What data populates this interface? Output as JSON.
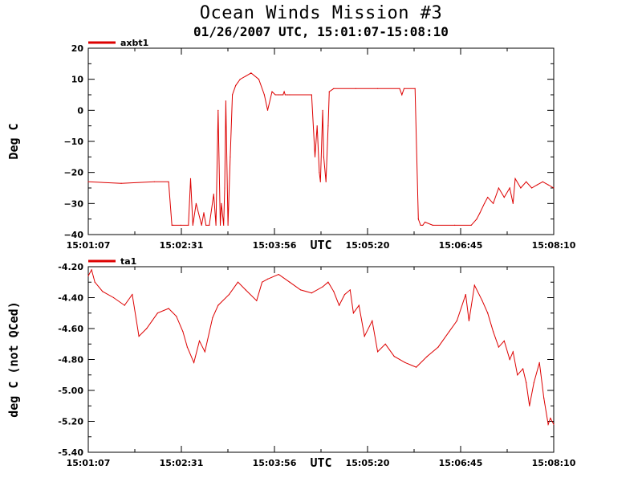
{
  "title": "Ocean Winds Mission #3",
  "subtitle": "01/26/2007  UTC, 15:01:07-15:08:10",
  "colors": {
    "series": "#dd0000",
    "axes": "#000000",
    "background": "#ffffff"
  },
  "chart_data": [
    {
      "type": "line",
      "xlabel": "UTC",
      "ylabel": "Deg C",
      "xlim": [
        "15:01:07",
        "15:08:10"
      ],
      "ylim": [
        -40,
        20
      ],
      "yticks": [
        "20",
        "10",
        "0",
        "−10",
        "−20",
        "−30",
        "−40"
      ],
      "xticks": [
        "15:01:07",
        "15:02:31",
        "15:03:56",
        "15:05:20",
        "15:06:45",
        "15:08:10"
      ],
      "grid": false,
      "legend": "top-left",
      "series": [
        {
          "name": "axbt1",
          "x": [
            "15:01:07",
            "15:01:37",
            "15:02:07",
            "15:02:20",
            "15:02:23",
            "15:02:24",
            "15:02:31",
            "15:02:38",
            "15:02:40",
            "15:02:42",
            "15:02:45",
            "15:02:50",
            "15:02:52",
            "15:02:54",
            "15:02:57",
            "15:03:01",
            "15:03:03",
            "15:03:05",
            "15:03:07",
            "15:03:08",
            "15:03:10",
            "15:03:11",
            "15:03:12",
            "15:03:14",
            "15:03:16",
            "15:03:18",
            "15:03:21",
            "15:03:23",
            "15:03:25",
            "15:03:30",
            "15:03:35",
            "15:03:42",
            "15:03:47",
            "15:03:50",
            "15:03:54",
            "15:03:57",
            "15:04:00",
            "15:04:02",
            "15:04:04",
            "15:04:05",
            "15:04:06",
            "15:04:08",
            "15:04:10",
            "15:04:30",
            "15:04:33",
            "15:04:35",
            "15:04:37",
            "15:04:38",
            "15:04:40",
            "15:04:41",
            "15:04:43",
            "15:04:45",
            "15:04:46",
            "15:04:50",
            "15:05:10",
            "15:05:30",
            "15:05:50",
            "15:05:52",
            "15:05:54",
            "15:06:04",
            "15:06:07",
            "15:06:09",
            "15:06:11",
            "15:06:13",
            "15:06:20",
            "15:06:40",
            "15:06:55",
            "15:07:00",
            "15:07:03",
            "15:07:07",
            "15:07:10",
            "15:07:15",
            "15:07:20",
            "15:07:25",
            "15:07:30",
            "15:07:33",
            "15:07:35",
            "15:07:40",
            "15:07:45",
            "15:07:50",
            "15:07:55",
            "15:08:00",
            "15:08:05",
            "15:08:10"
          ],
          "y": [
            -23,
            -23.5,
            -23,
            -23,
            -37,
            -37,
            -37,
            -37,
            -22,
            -37,
            -30,
            -37,
            -33,
            -37,
            -37,
            -27,
            -37,
            0,
            -37,
            -30,
            -37,
            -25,
            3,
            -37,
            -15,
            5,
            8,
            9,
            10,
            11,
            12,
            10,
            5,
            0,
            6,
            5,
            5,
            5,
            5,
            6,
            5,
            5,
            5,
            5,
            -15,
            -5,
            -20,
            -23,
            0,
            -15,
            -23,
            -5,
            6,
            7,
            7,
            7,
            7,
            5,
            7,
            7,
            -35,
            -37,
            -37,
            -36,
            -37,
            -37,
            -37,
            -35,
            -33,
            -30,
            -28,
            -30,
            -25,
            -28,
            -25,
            -30,
            -22,
            -25,
            -23,
            -25,
            -24,
            -23,
            -24,
            -25
          ]
        }
      ]
    },
    {
      "type": "line",
      "xlabel": "UTC",
      "ylabel": "deg C (not QCed)",
      "xlim": [
        "15:01:07",
        "15:08:10"
      ],
      "ylim": [
        -5.4,
        -4.2
      ],
      "yticks": [
        "-4.20",
        "-4.40",
        "-4.60",
        "-4.80",
        "-5.00",
        "-5.20",
        "-5.40"
      ],
      "xticks": [
        "15:01:07",
        "15:02:31",
        "15:03:56",
        "15:05:20",
        "15:06:45",
        "15:08:10"
      ],
      "grid": false,
      "legend": "top-left",
      "series": [
        {
          "name": "ta1",
          "x": [
            "15:01:07",
            "15:01:10",
            "15:01:13",
            "15:01:20",
            "15:01:30",
            "15:01:40",
            "15:01:47",
            "15:01:53",
            "15:02:00",
            "15:02:05",
            "15:02:10",
            "15:02:20",
            "15:02:27",
            "15:02:33",
            "15:02:37",
            "15:02:43",
            "15:02:48",
            "15:02:53",
            "15:03:00",
            "15:03:05",
            "15:03:15",
            "15:03:23",
            "15:03:30",
            "15:03:40",
            "15:03:45",
            "15:03:50",
            "15:04:00",
            "15:04:10",
            "15:04:20",
            "15:04:30",
            "15:04:40",
            "15:04:45",
            "15:04:50",
            "15:04:55",
            "15:05:00",
            "15:05:05",
            "15:05:08",
            "15:05:13",
            "15:05:18",
            "15:05:25",
            "15:05:30",
            "15:05:37",
            "15:05:45",
            "15:05:55",
            "15:06:05",
            "15:06:15",
            "15:06:25",
            "15:06:35",
            "15:06:42",
            "15:06:50",
            "15:06:53",
            "15:06:58",
            "15:07:05",
            "15:07:10",
            "15:07:15",
            "15:07:20",
            "15:07:25",
            "15:07:30",
            "15:07:33",
            "15:07:37",
            "15:07:42",
            "15:07:45",
            "15:07:48",
            "15:07:52",
            "15:07:57",
            "15:08:01",
            "15:08:05",
            "15:08:07",
            "15:08:10"
          ],
          "y": [
            -4.26,
            -4.22,
            -4.3,
            -4.36,
            -4.4,
            -4.45,
            -4.38,
            -4.65,
            -4.6,
            -4.55,
            -4.5,
            -4.47,
            -4.52,
            -4.62,
            -4.72,
            -4.82,
            -4.68,
            -4.75,
            -4.53,
            -4.45,
            -4.38,
            -4.3,
            -4.35,
            -4.42,
            -4.3,
            -4.28,
            -4.25,
            -4.3,
            -4.35,
            -4.37,
            -4.33,
            -4.3,
            -4.36,
            -4.45,
            -4.38,
            -4.35,
            -4.5,
            -4.45,
            -4.65,
            -4.55,
            -4.75,
            -4.7,
            -4.78,
            -4.82,
            -4.85,
            -4.78,
            -4.72,
            -4.62,
            -4.55,
            -4.38,
            -4.55,
            -4.32,
            -4.42,
            -4.5,
            -4.62,
            -4.72,
            -4.68,
            -4.8,
            -4.75,
            -4.9,
            -4.86,
            -4.95,
            -5.1,
            -4.95,
            -4.82,
            -5.05,
            -5.22,
            -5.18,
            -5.22
          ]
        }
      ]
    }
  ]
}
